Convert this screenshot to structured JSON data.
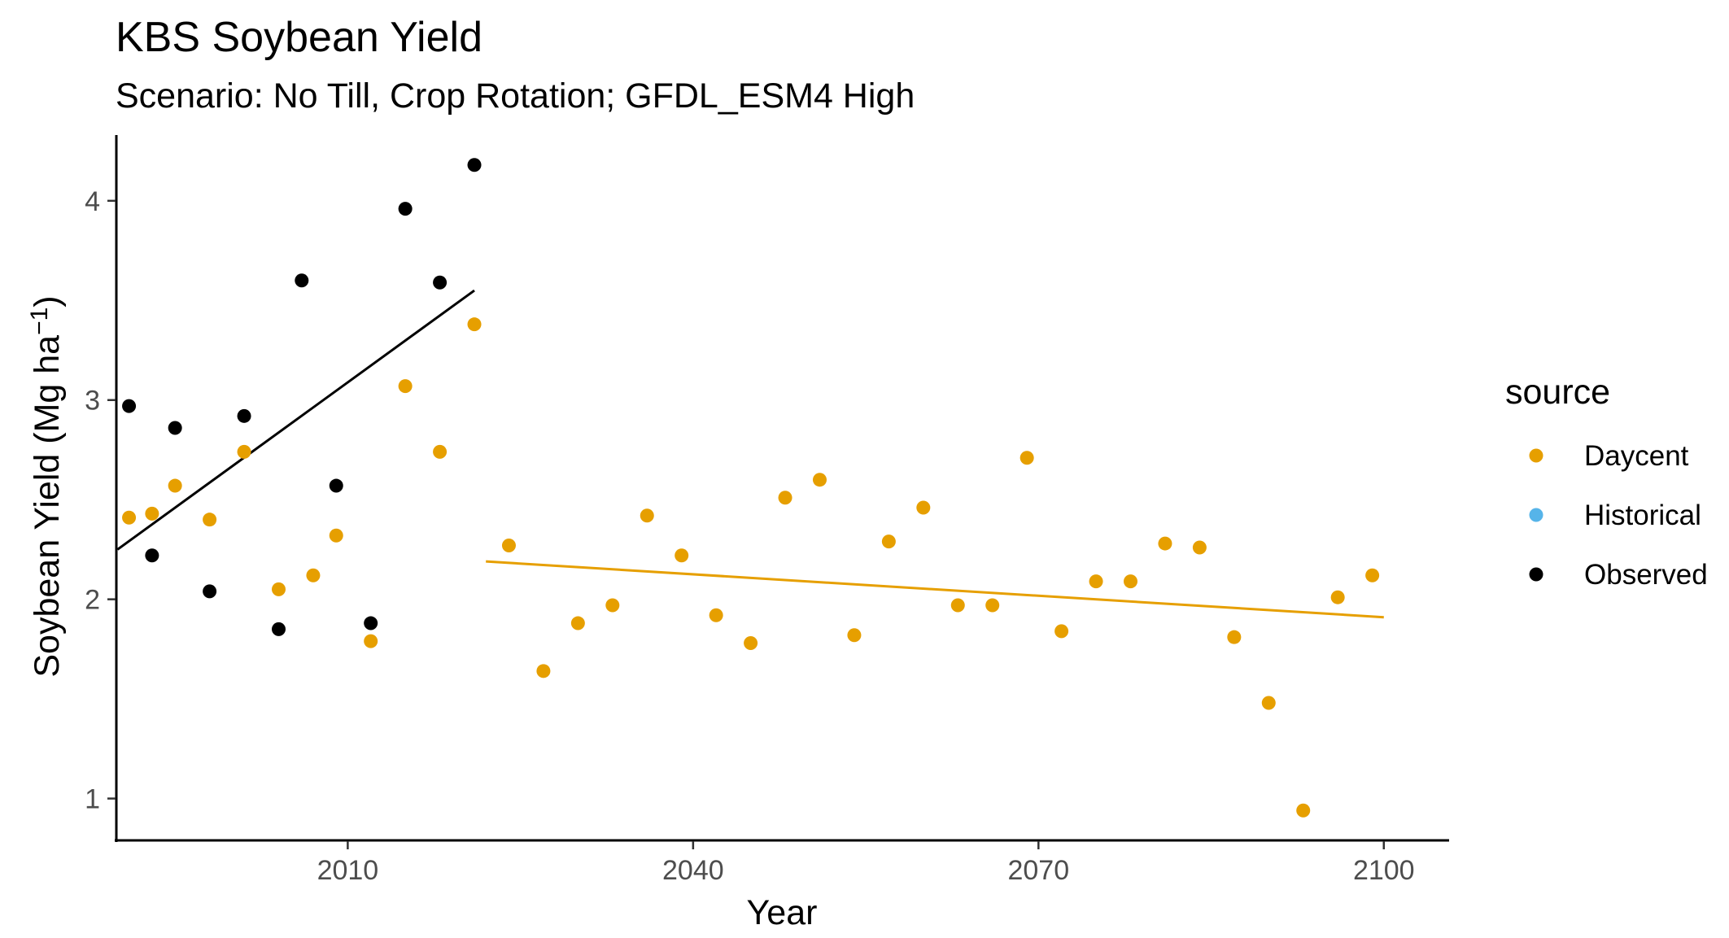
{
  "chart_data": {
    "type": "scatter",
    "title": "KBS Soybean Yield",
    "subtitle": "Scenario: No Till, Crop Rotation; GFDL_ESM4 High",
    "xlabel": "Year",
    "ylabel_main": "Soybean Yield (Mg ha",
    "ylabel_exp": "−1",
    "ylabel_close": ")",
    "xlim": [
      1989.9,
      2105.6
    ],
    "ylim": [
      0.79,
      4.33
    ],
    "x_ticks": [
      2010,
      2040,
      2070,
      2100
    ],
    "y_ticks": [
      1,
      2,
      3,
      4
    ],
    "grid": false,
    "legend": {
      "title": "source",
      "position": "right",
      "entries": [
        {
          "label": "Daycent",
          "color": "#E69F00"
        },
        {
          "label": "Historical",
          "color": "#56B4E9"
        },
        {
          "label": "Observed",
          "color": "#000000"
        }
      ]
    },
    "series": [
      {
        "name": "Daycent",
        "color": "#E69F00",
        "x": [
          1991,
          1993,
          1995,
          1998,
          2001,
          2004,
          2007,
          2009,
          2012,
          2015,
          2018,
          2021,
          2024,
          2027,
          2030,
          2033,
          2036,
          2039,
          2042,
          2045,
          2048,
          2051,
          2054,
          2057,
          2060,
          2063,
          2066,
          2069,
          2072,
          2075,
          2078,
          2081,
          2084,
          2087,
          2090,
          2093,
          2096,
          2099
        ],
        "y": [
          2.41,
          2.43,
          2.57,
          2.4,
          2.74,
          2.05,
          2.12,
          2.32,
          1.79,
          3.07,
          2.74,
          3.38,
          2.27,
          1.64,
          1.88,
          1.97,
          2.42,
          2.22,
          1.92,
          1.78,
          2.51,
          2.6,
          1.82,
          2.29,
          2.46,
          1.97,
          1.97,
          2.71,
          1.84,
          2.09,
          2.09,
          2.28,
          2.26,
          1.81,
          1.48,
          0.94,
          2.01,
          2.12
        ]
      },
      {
        "name": "Historical",
        "color": "#56B4E9",
        "x": [],
        "y": []
      },
      {
        "name": "Observed",
        "color": "#000000",
        "x": [
          1991,
          1993,
          1995,
          1998,
          2001,
          2004,
          2006,
          2009,
          2012,
          2015,
          2018,
          2021
        ],
        "y": [
          2.97,
          2.22,
          2.86,
          2.04,
          2.92,
          1.85,
          3.6,
          2.57,
          1.88,
          3.96,
          3.59,
          4.18
        ]
      }
    ],
    "trend_lines": [
      {
        "series": "Observed",
        "color": "#000000",
        "x": [
          1990,
          2021
        ],
        "y": [
          2.25,
          3.55
        ]
      },
      {
        "series": "Daycent",
        "color": "#E69F00",
        "x": [
          2022,
          2100
        ],
        "y": [
          2.19,
          1.91
        ]
      }
    ]
  }
}
